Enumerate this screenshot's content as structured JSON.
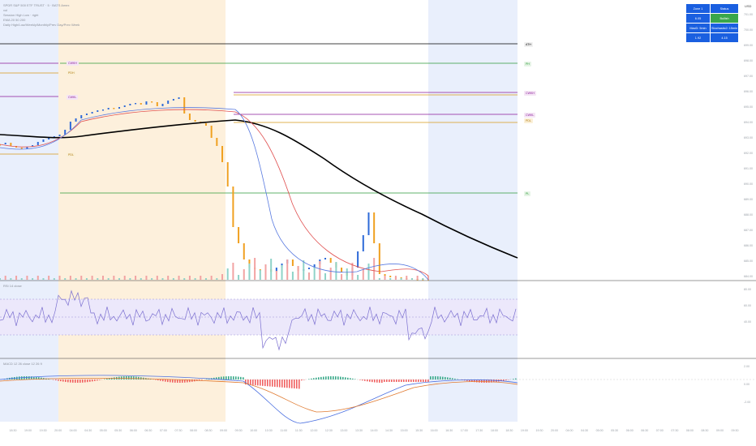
{
  "header": {
    "symbol_line": "SPDR S&P 500 ETF TRUST · 5 · BATS Amex",
    "line2": "vol",
    "line3": "Session High Low · right",
    "line4": "EMA 20 50 200",
    "line5": "Daily High/Low/Weekly/Monthly/Prev Day/Prev Week"
  },
  "currency_label": "USD",
  "status_table": {
    "rows": [
      [
        "Zone 1",
        "Status"
      ],
      [
        "6.05",
        "Bullish"
      ],
      [
        "MacD: 5min",
        "Stochastic2: 15min"
      ],
      [
        "1.92",
        "4.15"
      ]
    ],
    "colors": {
      "cell": "#1a5fe0",
      "bullish": "#3aa64a"
    }
  },
  "level_tags": {
    "ath": "ATH",
    "ph": "PH",
    "prev_week_high": "CWKH",
    "prev_day_high_left": "PDH",
    "weekly_level": "CWKL",
    "right_high": "CWKH",
    "right_low": "CWKL",
    "right_pdl": "PDL",
    "left_low": "PDL",
    "pl": "PL"
  },
  "panels": {
    "rsi_title": "RSI 14 close",
    "macd_title": "MACD 12 26 close 12 26 9"
  },
  "price_axis": [
    "701.00",
    "700.00",
    "699.00",
    "698.00",
    "697.00",
    "696.00",
    "695.00",
    "694.00",
    "693.00",
    "692.00",
    "691.00",
    "690.00",
    "689.00",
    "688.00",
    "687.00",
    "686.00",
    "685.00",
    "684.00"
  ],
  "rsi_axis": [
    "80.00",
    "60.00",
    "40.00"
  ],
  "macd_axis": [
    "2.00",
    "0.00",
    "-2.00"
  ],
  "x_labels": [
    "18:30",
    "19:00",
    "19:30",
    "20:00",
    "04:00",
    "04:30",
    "05:00",
    "05:30",
    "06:00",
    "06:30",
    "07:00",
    "07:30",
    "08:00",
    "08:30",
    "09:00",
    "09:30",
    "10:00",
    "10:30",
    "11:00",
    "11:30",
    "12:00",
    "12:30",
    "13:00",
    "13:30",
    "14:00",
    "14:30",
    "15:00",
    "15:30",
    "16:00",
    "16:30",
    "17:00",
    "17:30",
    "18:00",
    "18:30",
    "19:00",
    "19:30",
    "20:00",
    "04:00",
    "04:30",
    "05:00",
    "05:30",
    "06:00",
    "06:30",
    "07:00",
    "07:30",
    "08:00",
    "08:30",
    "09:00",
    "09:30"
  ],
  "colors": {
    "ema200": "#000000",
    "ema_red": "#e05050",
    "ema_blue": "#5a7be0",
    "ath_line": "#000000",
    "ph_line": "#2e9a3a",
    "purple_line": "#8a1a9a",
    "orange_line": "#d99a1a",
    "rsi_line": "#7b6fd0",
    "rsi_band": "#ece8fb",
    "macd_blue": "#4a6fe0",
    "macd_orange": "#e07a30",
    "premarket_shade": "#fdf0dc",
    "afterhours_shade": "#e9effc"
  }
}
